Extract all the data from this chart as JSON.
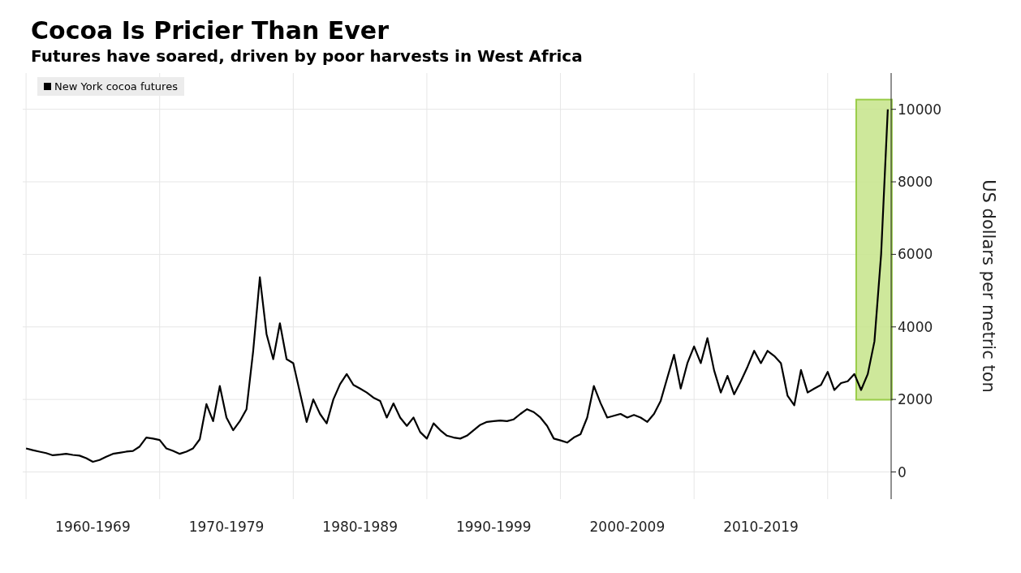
{
  "chart_data": {
    "type": "line",
    "title": "Cocoa Is Pricier Than Ever",
    "subtitle": "Futures have soared, driven by poor harvests in West Africa",
    "ylabel": "US dollars per metric ton",
    "categories": [
      null,
      null,
      null,
      null,
      null,
      null,
      null,
      null,
      null,
      null,
      "1960-1969",
      null,
      null,
      null,
      null,
      null,
      null,
      null,
      null,
      null,
      null,
      null,
      null,
      null,
      null,
      null,
      null,
      null,
      null,
      null,
      "1970-1979",
      null,
      null,
      null,
      null,
      null,
      null,
      null,
      null,
      null,
      null,
      null,
      null,
      null,
      null,
      null,
      null,
      null,
      null,
      null,
      "1980-1989",
      null,
      null,
      null,
      null,
      null,
      null,
      null,
      null,
      null,
      null,
      null,
      null,
      null,
      null,
      null,
      null,
      null,
      null,
      null,
      "1990-1999",
      null,
      null,
      null,
      null,
      null,
      null,
      null,
      null,
      null,
      null,
      null,
      null,
      null,
      null,
      null,
      null,
      null,
      null,
      null,
      "2000-2009",
      null,
      null,
      null,
      null,
      null,
      null,
      null,
      null,
      null,
      null,
      null,
      null,
      null,
      null,
      null,
      null,
      null,
      null,
      null,
      "2010-2019",
      null,
      null,
      null,
      null,
      null,
      null,
      null,
      null,
      null,
      null,
      null,
      null,
      null,
      null,
      null,
      null,
      null,
      null,
      null
    ],
    "series": [
      {
        "name": "New York cocoa futures",
        "color": "#000000",
        "values": [
          650,
          600,
          560,
          520,
          460,
          480,
          500,
          470,
          450,
          380,
          280,
          330,
          420,
          500,
          530,
          560,
          580,
          700,
          950,
          920,
          880,
          650,
          580,
          500,
          560,
          650,
          900,
          1870,
          1400,
          2370,
          1500,
          1150,
          1400,
          1730,
          3340,
          5370,
          3800,
          3110,
          4100,
          3110,
          3000,
          2190,
          1380,
          2000,
          1600,
          1340,
          2000,
          2420,
          2700,
          2400,
          2300,
          2190,
          2050,
          1960,
          1500,
          1890,
          1500,
          1270,
          1500,
          1100,
          920,
          1340,
          1150,
          1000,
          950,
          920,
          1000,
          1150,
          1300,
          1380,
          1400,
          1420,
          1400,
          1450,
          1600,
          1730,
          1650,
          1500,
          1270,
          920,
          870,
          810,
          950,
          1040,
          1500,
          2370,
          1900,
          1500,
          1550,
          1600,
          1500,
          1570,
          1500,
          1380,
          1600,
          1960,
          2600,
          3230,
          2300,
          3000,
          3460,
          3000,
          3690,
          2800,
          2190,
          2650,
          2140,
          2500,
          2900,
          3340,
          3000,
          3340,
          3200,
          3000,
          2100,
          1840,
          2810,
          2190,
          2300,
          2400,
          2760,
          2260,
          2450,
          2500,
          2700,
          2260,
          2700,
          3600,
          6000,
          10000
        ]
      }
    ],
    "ylim": [
      -750,
      11000
    ],
    "yticks": [
      0,
      2000,
      4000,
      6000,
      8000,
      10000
    ],
    "grid": true,
    "legend": "top left",
    "marker": "none",
    "line_style": "solid"
  }
}
